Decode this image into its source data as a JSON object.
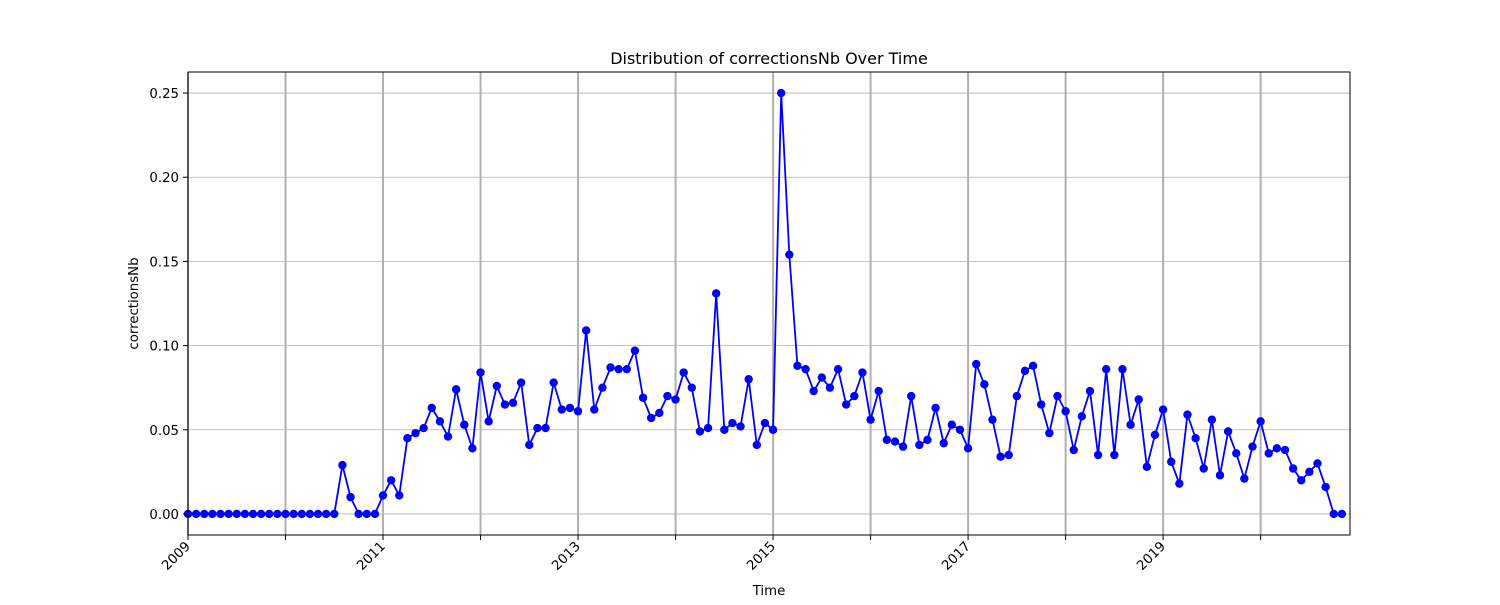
{
  "chart_data": {
    "type": "line",
    "title": "Distribution of correctionsNb Over Time",
    "xlabel": "Time",
    "ylabel": "correctionsNb",
    "x_axis": "time",
    "x_start": "2009-01",
    "x_end": "2020-12",
    "xlim": [
      "2009-01",
      "2020-12"
    ],
    "ylim": [
      -0.0125,
      0.2625
    ],
    "x_ticks": [
      "2009",
      "2010",
      "2011",
      "2012",
      "2013",
      "2014",
      "2015",
      "2016",
      "2017",
      "2018",
      "2019",
      "2020"
    ],
    "x_tick_labels": [
      "2009",
      "",
      "2011",
      "",
      "2013",
      "",
      "2015",
      "",
      "2017",
      "",
      "2019",
      ""
    ],
    "y_ticks": [
      0.0,
      0.05,
      0.1,
      0.15,
      0.2,
      0.25
    ],
    "y_tick_labels": [
      "0.00",
      "0.05",
      "0.10",
      "0.15",
      "0.20",
      "0.25"
    ],
    "grid": true,
    "legend": false,
    "colors": {
      "line": "#0000ff",
      "grid": "#b0b0b0",
      "axes": "#000000"
    },
    "series": [
      {
        "marker": "circle",
        "values": [
          0,
          0,
          0,
          0,
          0,
          0,
          0,
          0,
          0,
          0,
          0,
          0,
          0,
          0,
          0,
          0,
          0,
          0,
          0,
          0.029,
          0.01,
          0,
          0,
          0,
          0.011,
          0.02,
          0.011,
          0.045,
          0.048,
          0.051,
          0.063,
          0.055,
          0.046,
          0.074,
          0.053,
          0.039,
          0.084,
          0.055,
          0.076,
          0.065,
          0.066,
          0.078,
          0.041,
          0.051,
          0.051,
          0.078,
          0.062,
          0.063,
          0.061,
          0.109,
          0.062,
          0.075,
          0.087,
          0.086,
          0.086,
          0.097,
          0.069,
          0.057,
          0.06,
          0.07,
          0.068,
          0.084,
          0.075,
          0.049,
          0.051,
          0.131,
          0.05,
          0.054,
          0.052,
          0.08,
          0.041,
          0.054,
          0.05,
          0.25,
          0.154,
          0.088,
          0.086,
          0.073,
          0.081,
          0.075,
          0.086,
          0.065,
          0.07,
          0.084,
          0.056,
          0.073,
          0.044,
          0.043,
          0.04,
          0.07,
          0.041,
          0.044,
          0.063,
          0.042,
          0.053,
          0.05,
          0.039,
          0.089,
          0.077,
          0.056,
          0.034,
          0.035,
          0.07,
          0.085,
          0.088,
          0.065,
          0.048,
          0.07,
          0.061,
          0.038,
          0.058,
          0.073,
          0.035,
          0.086,
          0.035,
          0.086,
          0.053,
          0.068,
          0.028,
          0.047,
          0.062,
          0.031,
          0.018,
          0.059,
          0.045,
          0.027,
          0.056,
          0.023,
          0.049,
          0.036,
          0.021,
          0.04,
          0.055,
          0.036,
          0.039,
          0.038,
          0.027,
          0.02,
          0.025,
          0.03,
          0.016,
          0,
          0
        ]
      }
    ]
  }
}
